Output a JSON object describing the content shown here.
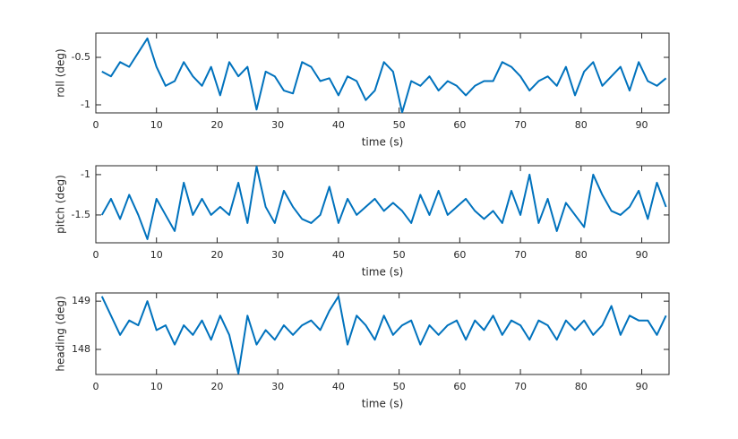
{
  "chart_data": [
    {
      "type": "line",
      "xlabel": "time (s)",
      "ylabel": "roll (deg)",
      "color": "#0072bd",
      "xlim": [
        0,
        94.5
      ],
      "xticks": [
        0,
        10,
        20,
        30,
        40,
        50,
        60,
        70,
        80,
        90
      ],
      "ylim": [
        -1.085,
        -0.245
      ],
      "yticks": [
        -1,
        -0.5
      ],
      "x": [
        1,
        2.5,
        4,
        5.5,
        7,
        8.5,
        10,
        11.5,
        13,
        14.5,
        16,
        17.5,
        19,
        20.5,
        22,
        23.5,
        25,
        26.5,
        28,
        29.5,
        31,
        32.5,
        34,
        35.5,
        37,
        38.5,
        40,
        41.5,
        43,
        44.5,
        46,
        47.5,
        49,
        50.5,
        52,
        53.5,
        55,
        56.5,
        58,
        59.5,
        61,
        62.5,
        64,
        65.5,
        67,
        68.5,
        70,
        71.5,
        73,
        74.5,
        76,
        77.5,
        79,
        80.5,
        82,
        83.5,
        85,
        86.5,
        88,
        89.5,
        91,
        92.5,
        94
      ],
      "values": [
        -0.65,
        -0.7,
        -0.55,
        -0.6,
        -0.45,
        -0.3,
        -0.6,
        -0.8,
        -0.75,
        -0.55,
        -0.7,
        -0.8,
        -0.6,
        -0.9,
        -0.55,
        -0.7,
        -0.6,
        -1.05,
        -0.65,
        -0.7,
        -0.85,
        -0.88,
        -0.55,
        -0.6,
        -0.75,
        -0.72,
        -0.9,
        -0.7,
        -0.75,
        -0.95,
        -0.85,
        -0.55,
        -0.65,
        -1.08,
        -0.75,
        -0.8,
        -0.7,
        -0.85,
        -0.75,
        -0.8,
        -0.9,
        -0.8,
        -0.75,
        -0.75,
        -0.55,
        -0.6,
        -0.7,
        -0.85,
        -0.75,
        -0.7,
        -0.8,
        -0.6,
        -0.9,
        -0.65,
        -0.55,
        -0.8,
        -0.7,
        -0.6,
        -0.85,
        -0.55,
        -0.75,
        -0.8,
        -0.72
      ]
    },
    {
      "type": "line",
      "xlabel": "time (s)",
      "ylabel": "pitch (deg)",
      "color": "#0072bd",
      "xlim": [
        0,
        94.5
      ],
      "xticks": [
        0,
        10,
        20,
        30,
        40,
        50,
        60,
        70,
        80,
        90
      ],
      "ylim": [
        -1.845,
        -0.89
      ],
      "yticks": [
        -1.5,
        -1
      ],
      "x": [
        1,
        2.5,
        4,
        5.5,
        7,
        8.5,
        10,
        11.5,
        13,
        14.5,
        16,
        17.5,
        19,
        20.5,
        22,
        23.5,
        25,
        26.5,
        28,
        29.5,
        31,
        32.5,
        34,
        35.5,
        37,
        38.5,
        40,
        41.5,
        43,
        44.5,
        46,
        47.5,
        49,
        50.5,
        52,
        53.5,
        55,
        56.5,
        58,
        59.5,
        61,
        62.5,
        64,
        65.5,
        67,
        68.5,
        70,
        71.5,
        73,
        74.5,
        76,
        77.5,
        79,
        80.5,
        82,
        83.5,
        85,
        86.5,
        88,
        89.5,
        91,
        92.5,
        94
      ],
      "values": [
        -1.5,
        -1.3,
        -1.55,
        -1.25,
        -1.5,
        -1.8,
        -1.3,
        -1.5,
        -1.7,
        -1.1,
        -1.5,
        -1.3,
        -1.5,
        -1.4,
        -1.5,
        -1.1,
        -1.6,
        -0.9,
        -1.4,
        -1.6,
        -1.2,
        -1.4,
        -1.55,
        -1.6,
        -1.5,
        -1.15,
        -1.6,
        -1.3,
        -1.5,
        -1.4,
        -1.3,
        -1.45,
        -1.35,
        -1.45,
        -1.6,
        -1.25,
        -1.5,
        -1.2,
        -1.5,
        -1.4,
        -1.3,
        -1.45,
        -1.55,
        -1.45,
        -1.6,
        -1.2,
        -1.5,
        -1.0,
        -1.6,
        -1.3,
        -1.7,
        -1.35,
        -1.5,
        -1.65,
        -1.0,
        -1.25,
        -1.45,
        -1.5,
        -1.4,
        -1.2,
        -1.55,
        -1.1,
        -1.4
      ]
    },
    {
      "type": "line",
      "xlabel": "time (s)",
      "ylabel": "heading (deg)",
      "color": "#0072bd",
      "xlim": [
        0,
        94.5
      ],
      "xticks": [
        0,
        10,
        20,
        30,
        40,
        50,
        60,
        70,
        80,
        90
      ],
      "ylim": [
        147.48,
        149.17
      ],
      "yticks": [
        148,
        149
      ],
      "x": [
        1,
        2.5,
        4,
        5.5,
        7,
        8.5,
        10,
        11.5,
        13,
        14.5,
        16,
        17.5,
        19,
        20.5,
        22,
        23.5,
        25,
        26.5,
        28,
        29.5,
        31,
        32.5,
        34,
        35.5,
        37,
        38.5,
        40,
        41.5,
        43,
        44.5,
        46,
        47.5,
        49,
        50.5,
        52,
        53.5,
        55,
        56.5,
        58,
        59.5,
        61,
        62.5,
        64,
        65.5,
        67,
        68.5,
        70,
        71.5,
        73,
        74.5,
        76,
        77.5,
        79,
        80.5,
        82,
        83.5,
        85,
        86.5,
        88,
        89.5,
        91,
        92.5,
        94
      ],
      "values": [
        149.1,
        148.7,
        148.3,
        148.6,
        148.5,
        149,
        148.4,
        148.5,
        148.1,
        148.5,
        148.3,
        148.6,
        148.2,
        148.7,
        148.3,
        147.5,
        148.7,
        148.1,
        148.4,
        148.2,
        148.5,
        148.3,
        148.5,
        148.6,
        148.4,
        148.8,
        149.1,
        148.1,
        148.7,
        148.5,
        148.2,
        148.7,
        148.3,
        148.5,
        148.6,
        148.1,
        148.5,
        148.3,
        148.5,
        148.6,
        148.2,
        148.6,
        148.4,
        148.7,
        148.3,
        148.6,
        148.5,
        148.2,
        148.6,
        148.5,
        148.2,
        148.6,
        148.4,
        148.6,
        148.3,
        148.5,
        148.9,
        148.3,
        148.7,
        148.6,
        148.6,
        148.3,
        148.7
      ]
    }
  ]
}
